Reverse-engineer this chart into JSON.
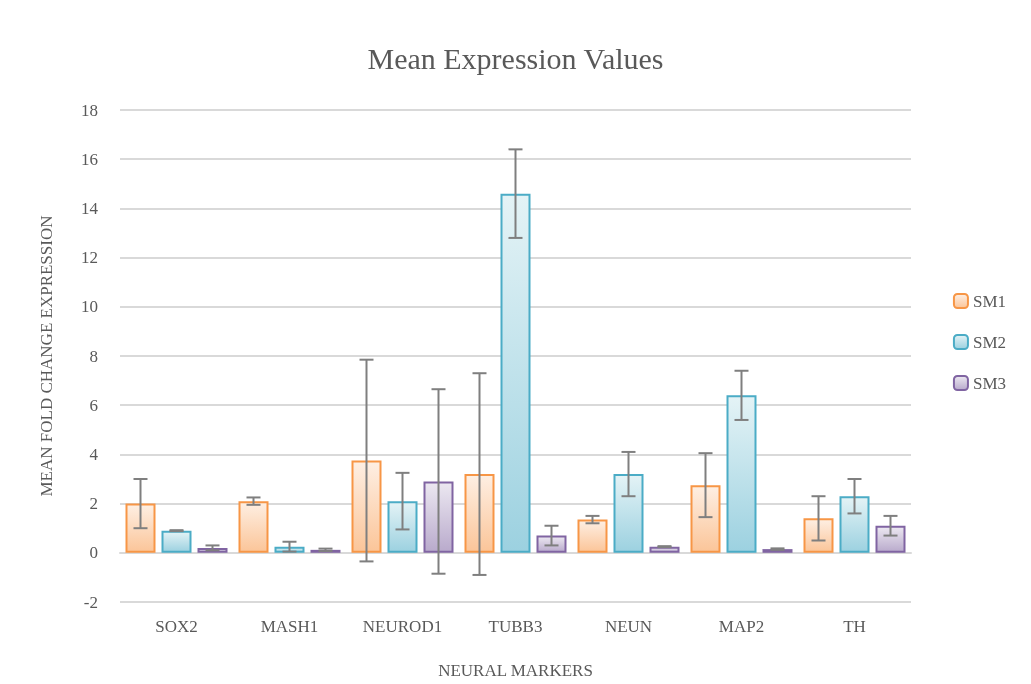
{
  "chart_data": {
    "type": "bar",
    "title": "Mean Expression Values",
    "xlabel": "NEURAL MARKERS",
    "ylabel": "MEAN FOLD CHANGE EXPRESSION",
    "categories": [
      "SOX2",
      "MASH1",
      "NEUROD1",
      "TUBB3",
      "NEUN",
      "MAP2",
      "TH"
    ],
    "series": [
      {
        "name": "SM1",
        "color": "#f79646",
        "values": [
          2.0,
          2.1,
          3.75,
          3.2,
          1.35,
          2.75,
          1.4
        ],
        "errors": [
          1.0,
          0.15,
          4.1,
          4.1,
          0.15,
          1.3,
          0.9
        ]
      },
      {
        "name": "SM2",
        "color": "#4bacc6",
        "values": [
          0.9,
          0.25,
          2.1,
          14.6,
          3.2,
          6.4,
          2.3
        ],
        "errors": [
          0.02,
          0.2,
          1.15,
          1.8,
          0.9,
          1.0,
          0.7
        ]
      },
      {
        "name": "SM3",
        "color": "#8064a2",
        "values": [
          0.2,
          0.12,
          2.9,
          0.7,
          0.25,
          0.15,
          1.1
        ],
        "errors": [
          0.1,
          0.05,
          3.75,
          0.4,
          0.02,
          0.03,
          0.4
        ]
      }
    ],
    "ylim": [
      -2,
      18
    ],
    "yticks": [
      -2,
      0,
      2,
      4,
      6,
      8,
      10,
      12,
      14,
      16,
      18
    ],
    "grid": "y",
    "legend": "right"
  }
}
